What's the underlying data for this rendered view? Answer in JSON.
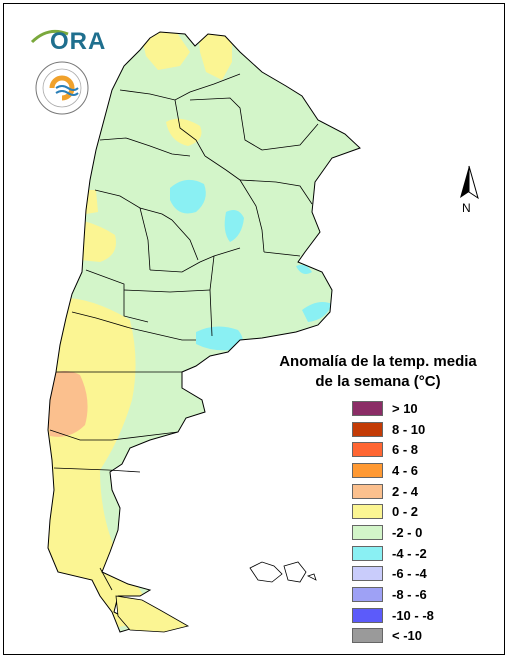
{
  "logo": {
    "wordmark": "ORA"
  },
  "north_arrow": {
    "label": "N"
  },
  "legend": {
    "title_line1": "Anomalía de la temp. media",
    "title_line2": "de la semana (°C)",
    "items": [
      {
        "label": "> 10",
        "color": "#8b2d66"
      },
      {
        "label": "8 - 10",
        "color": "#c33b06"
      },
      {
        "label": "6 - 8",
        "color": "#ff6633"
      },
      {
        "label": "4 - 6",
        "color": "#ff9933"
      },
      {
        "label": "2 - 4",
        "color": "#fbc08e"
      },
      {
        "label": "0 - 2",
        "color": "#fbf593"
      },
      {
        "label": "-2 - 0",
        "color": "#d3f5c9"
      },
      {
        "label": "-4 - -2",
        "color": "#8af0f3"
      },
      {
        "label": "-6 - -4",
        "color": "#c9ccfb"
      },
      {
        "label": "-8 - -6",
        "color": "#9ea1f5"
      },
      {
        "label": "-10 - -8",
        "color": "#5c5bfa"
      },
      {
        "label": "< -10",
        "color": "#9a9a9a"
      }
    ]
  }
}
